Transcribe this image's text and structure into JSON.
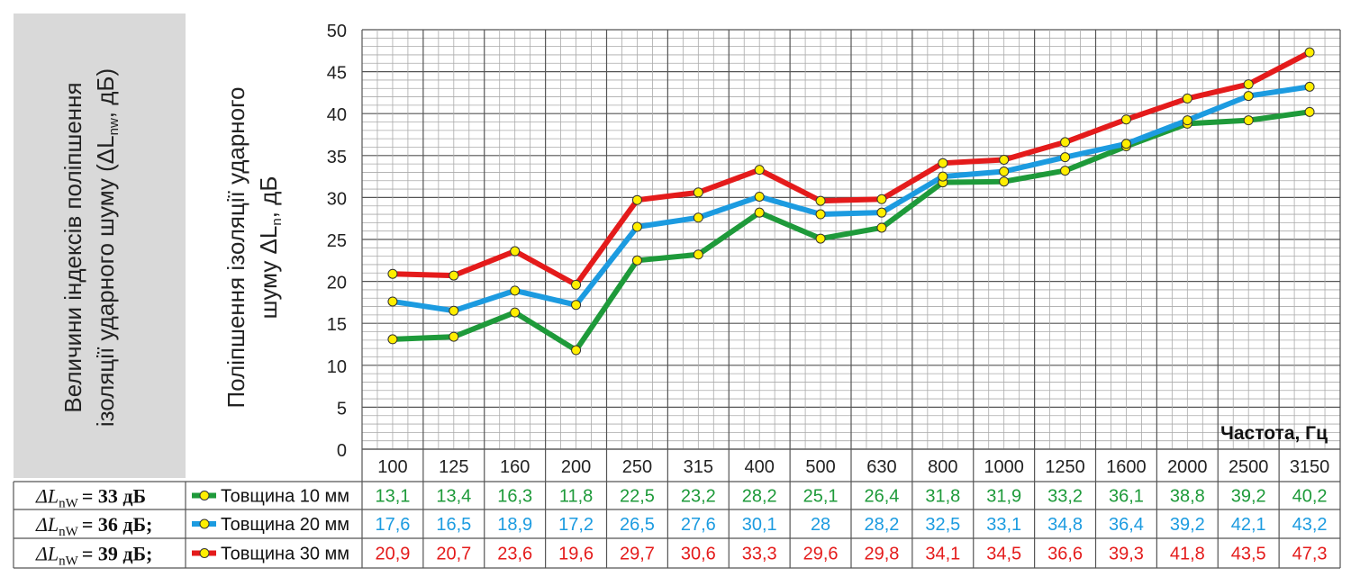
{
  "left_label": "Величини індексів поліпшення ізоляції ударного шуму (ΔLnw, дБ)",
  "left_label_lines": [
    "Величини індексів поліпшення",
    "ізоляції ударного шуму (ΔL",
    "nw",
    ", дБ)"
  ],
  "y_axis_label_lines": [
    "Поліпшення ізоляції ударного",
    "шуму ΔL",
    "n",
    ", дБ"
  ],
  "x_axis_title": "Частота, Гц",
  "colors": {
    "green": "#1e9a3a",
    "blue": "#1c9be0",
    "red": "#e41b1b",
    "marker_fill": "#ffee00",
    "panel": "#d9d9d9"
  },
  "chart_data": {
    "type": "line",
    "x": [
      "100",
      "125",
      "160",
      "200",
      "250",
      "315",
      "400",
      "500",
      "630",
      "800",
      "1000",
      "1250",
      "1600",
      "2000",
      "2500",
      "3150"
    ],
    "ylim": [
      0,
      50
    ],
    "yticks": [
      0,
      5,
      10,
      15,
      20,
      25,
      30,
      35,
      40,
      45,
      50
    ],
    "grid": true,
    "series": [
      {
        "name": "Товщина 10 мм",
        "color": "#1e9a3a",
        "values": [
          13.1,
          13.4,
          16.3,
          11.8,
          22.5,
          23.2,
          28.2,
          25.1,
          26.4,
          31.8,
          31.9,
          33.2,
          36.1,
          38.8,
          39.2,
          40.2
        ],
        "labels": [
          "13,1",
          "13,4",
          "16,3",
          "11,8",
          "22,5",
          "23,2",
          "28,2",
          "25,1",
          "26,4",
          "31,8",
          "31,9",
          "33,2",
          "36,1",
          "38,8",
          "39,2",
          "40,2"
        ],
        "index_label": "ΔL",
        "index_sub": "nW",
        "index_value": "= 33 дБ"
      },
      {
        "name": "Товщина 20 мм",
        "color": "#1c9be0",
        "values": [
          17.6,
          16.5,
          18.9,
          17.2,
          26.5,
          27.6,
          30.1,
          28,
          28.2,
          32.5,
          33.1,
          34.8,
          36.4,
          39.2,
          42.1,
          43.2
        ],
        "labels": [
          "17,6",
          "16,5",
          "18,9",
          "17,2",
          "26,5",
          "27,6",
          "30,1",
          "28",
          "28,2",
          "32,5",
          "33,1",
          "34,8",
          "36,4",
          "39,2",
          "42,1",
          "43,2"
        ],
        "index_label": "ΔL",
        "index_sub": "nW",
        "index_value": "= 36 дБ;"
      },
      {
        "name": "Товщина 30 мм",
        "color": "#e41b1b",
        "values": [
          20.9,
          20.7,
          23.6,
          19.6,
          29.7,
          30.6,
          33.3,
          29.6,
          29.8,
          34.1,
          34.5,
          36.6,
          39.3,
          41.8,
          43.5,
          47.3
        ],
        "labels": [
          "20,9",
          "20,7",
          "23,6",
          "19,6",
          "29,7",
          "30,6",
          "33,3",
          "29,6",
          "29,8",
          "34,1",
          "34,5",
          "36,6",
          "39,3",
          "41,8",
          "43,5",
          "47,3"
        ],
        "index_label": "ΔL",
        "index_sub": "nW",
        "index_value": "= 39 дБ;"
      }
    ]
  }
}
